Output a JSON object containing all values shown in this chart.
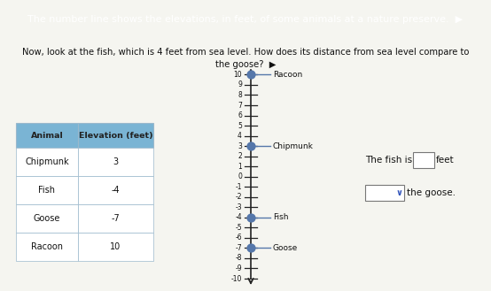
{
  "title_top": "The number line shows the elevations, in feet, of some animals at a nature preserve.  ▶️",
  "question_line1": "Now, look at the fish, which is 4 feet from sea level. How does its distance from sea level compare to",
  "question_line2": "the goose?  ▶️",
  "table_header": [
    "Animal",
    "Elevation (feet)"
  ],
  "table_data": [
    [
      "Chipmunk",
      "3"
    ],
    [
      "Fish",
      "-4"
    ],
    [
      "Goose",
      "-7"
    ],
    [
      "Racoon",
      "10"
    ]
  ],
  "number_line_min": -10,
  "number_line_max": 10,
  "animals": [
    {
      "name": "Racoon",
      "elevation": 10
    },
    {
      "name": "Chipmunk",
      "elevation": 3
    },
    {
      "name": "Fish",
      "elevation": -4
    },
    {
      "name": "Goose",
      "elevation": -7
    }
  ],
  "dot_color": "#5577aa",
  "dot_size": 55,
  "line_color": "#222222",
  "tick_color": "#222222",
  "bg_color": "#f5f5f0",
  "title_bg": "#3a5a8c",
  "title_text_color": "#ffffff",
  "table_header_bg": "#7ab4d4",
  "answer_box_text1": "The fish is",
  "answer_box_text2": "feet",
  "answer_box_text3": "the goose.",
  "fig_width": 5.54,
  "fig_height": 3.29,
  "dpi": 100
}
